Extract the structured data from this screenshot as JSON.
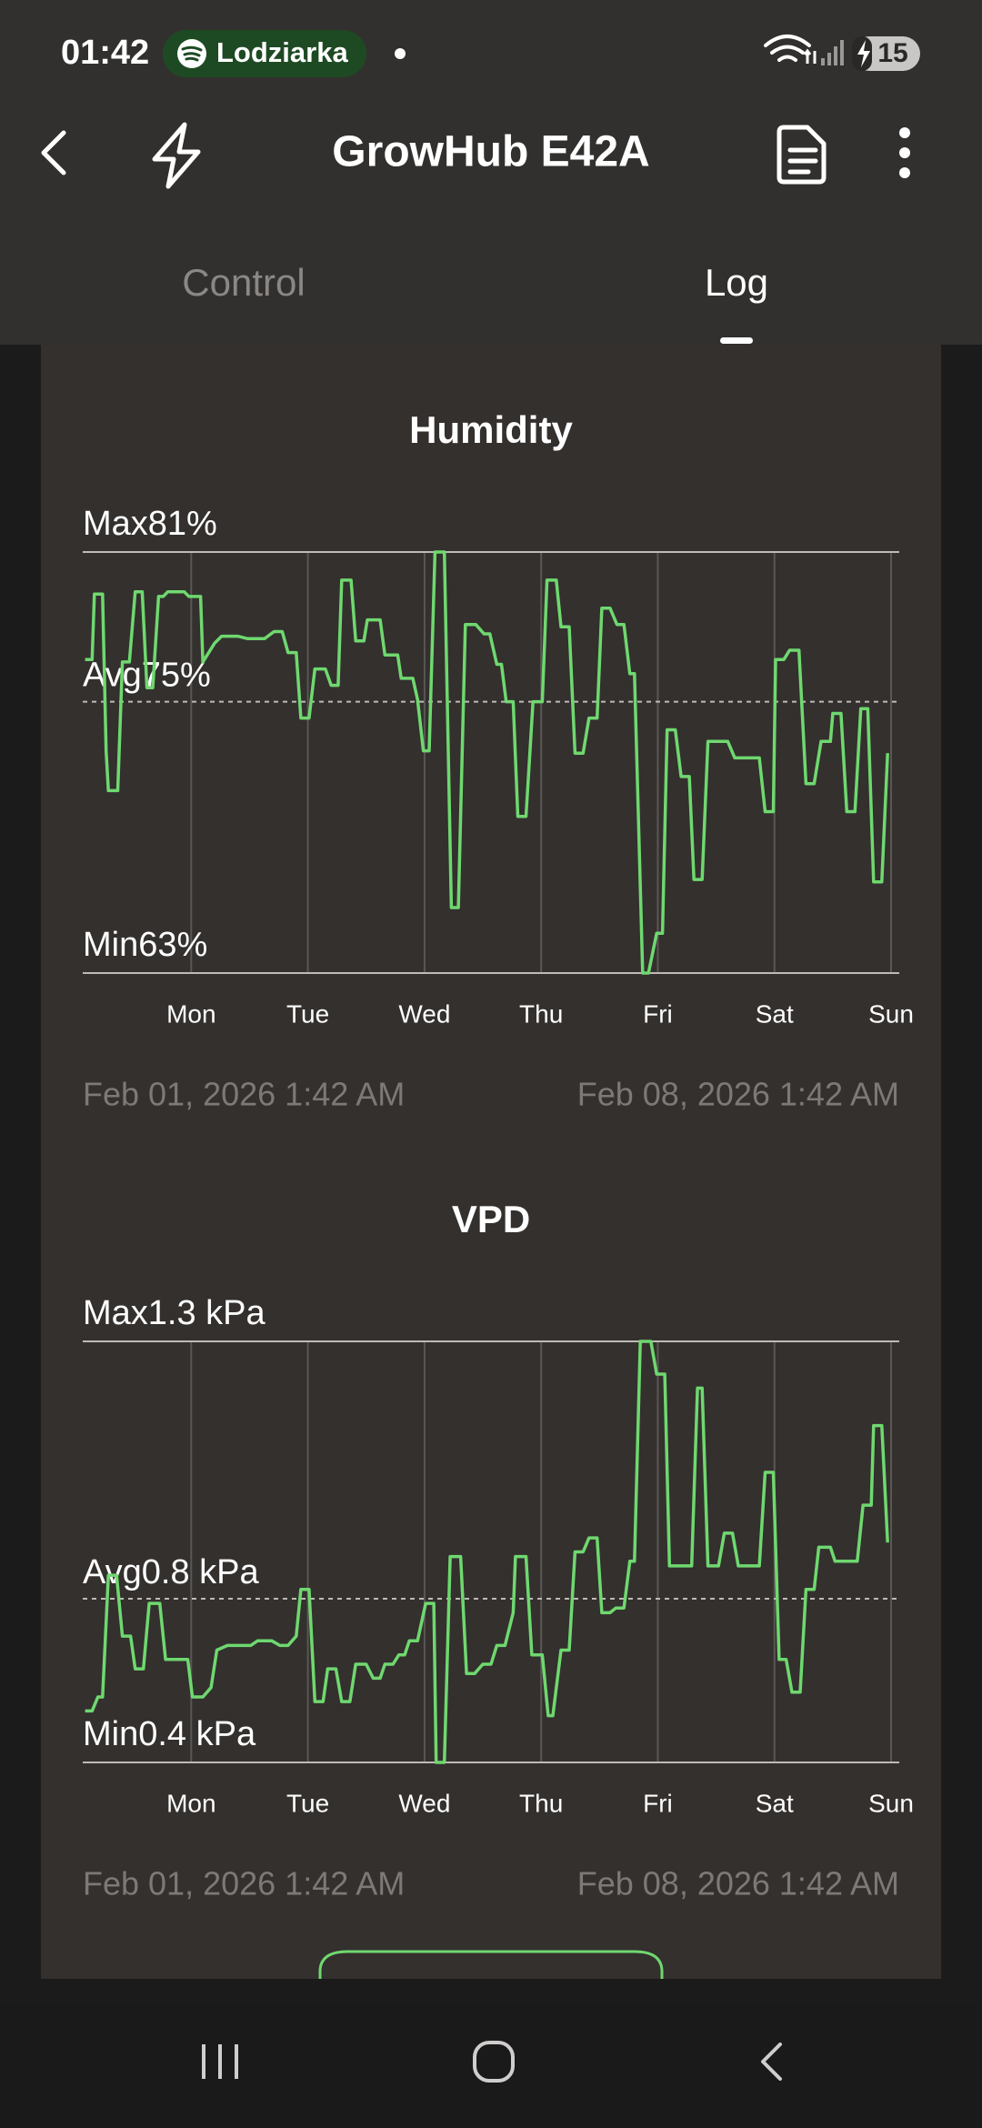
{
  "status_bar": {
    "time": "01:42",
    "media": "Lodziarka",
    "battery": "15"
  },
  "header": {
    "title": "GrowHub E42A"
  },
  "tabs": [
    "Control",
    "Log"
  ],
  "chart_data": [
    {
      "type": "line",
      "title": "Humidity",
      "color": "#6fd86f",
      "grid": true,
      "x": [
        0.02,
        0.08,
        0.1,
        0.17,
        0.2,
        0.22,
        0.3,
        0.34,
        0.4,
        0.45,
        0.51,
        0.55,
        0.6,
        0.65,
        0.69,
        0.73,
        0.87,
        0.91,
        1.01,
        1.03,
        1.13,
        1.19,
        1.33,
        1.41,
        1.56,
        1.64,
        1.71,
        1.76,
        1.83,
        1.87,
        1.94,
        1.99,
        2.08,
        2.13,
        2.19,
        2.22,
        2.3,
        2.34,
        2.41,
        2.44,
        2.55,
        2.59,
        2.7,
        2.73,
        2.83,
        2.87,
        2.92,
        2.97,
        3.02,
        3.1,
        3.16,
        3.22,
        3.28,
        3.37,
        3.44,
        3.49,
        3.55,
        3.59,
        3.63,
        3.69,
        3.73,
        3.8,
        3.86,
        3.94,
        3.98,
        4.06,
        4.1,
        4.17,
        4.22,
        4.29,
        4.34,
        4.41,
        4.45,
        4.52,
        4.58,
        4.64,
        4.69,
        4.73,
        4.8,
        4.85,
        4.92,
        4.97,
        5.01,
        5.08,
        5.13,
        5.2,
        5.24,
        5.31,
        5.36,
        5.53,
        5.59,
        5.8,
        5.85,
        5.92,
        5.94,
        6.01,
        6.06,
        6.14,
        6.2,
        6.27,
        6.33,
        6.41,
        6.43,
        6.5,
        6.55,
        6.62,
        6.67,
        6.73,
        6.78,
        6.85,
        6.9
      ],
      "values": [
        76.4,
        76.4,
        79.2,
        79.2,
        72.5,
        70.8,
        70.8,
        76.3,
        76.3,
        79.3,
        79.3,
        75.2,
        75.2,
        79.1,
        79.1,
        79.3,
        79.3,
        79.1,
        79.1,
        76.3,
        77.1,
        77.4,
        77.4,
        77.3,
        77.3,
        77.6,
        77.6,
        76.7,
        76.7,
        73.9,
        73.9,
        76.0,
        76.0,
        75.3,
        75.3,
        79.8,
        79.8,
        77.2,
        77.2,
        78.1,
        78.1,
        76.6,
        76.6,
        75.6,
        75.6,
        74.7,
        72.5,
        72.5,
        81,
        81,
        65.8,
        65.8,
        77.9,
        77.9,
        77.5,
        77.5,
        76.2,
        76.2,
        74.6,
        74.6,
        69.7,
        69.7,
        74.6,
        74.6,
        79.8,
        79.8,
        77.8,
        77.8,
        72.4,
        72.4,
        73.9,
        73.9,
        78.6,
        78.6,
        77.9,
        77.9,
        75.8,
        75.8,
        63,
        63,
        64.7,
        64.7,
        73.4,
        73.4,
        71.4,
        71.4,
        67.0,
        67.0,
        72.9,
        72.9,
        72.2,
        72.2,
        69.9,
        69.9,
        76.4,
        76.4,
        76.8,
        76.8,
        71.1,
        71.1,
        72.9,
        72.9,
        74.1,
        74.1,
        69.9,
        69.9,
        74.3,
        74.3,
        66.9,
        66.9,
        72.4
      ],
      "xlim": [
        0,
        7
      ],
      "xticks": [
        {
          "value": 0.93,
          "label": "Mon"
        },
        {
          "value": 1.93,
          "label": "Tue"
        },
        {
          "value": 2.93,
          "label": "Wed"
        },
        {
          "value": 3.93,
          "label": "Thu"
        },
        {
          "value": 4.93,
          "label": "Fri"
        },
        {
          "value": 5.93,
          "label": "Sat"
        },
        {
          "value": 6.93,
          "label": "Sun"
        }
      ],
      "ylim": [
        63,
        81
      ],
      "yticks": [
        {
          "value": 81,
          "label": "Max81%"
        },
        {
          "value": 63,
          "label": "Min63%"
        }
      ],
      "avg": {
        "value": 74.6,
        "label": "Avg75%"
      },
      "range_start": "Feb 01, 2026 1:42 AM",
      "range_end": "Feb 08, 2026 1:42 AM"
    },
    {
      "type": "line",
      "title": "VPD",
      "color": "#6fd86f",
      "grid": true,
      "x": [
        0.02,
        0.08,
        0.13,
        0.17,
        0.22,
        0.29,
        0.34,
        0.41,
        0.45,
        0.52,
        0.57,
        0.66,
        0.71,
        0.9,
        0.94,
        1.03,
        1.1,
        1.15,
        1.24,
        1.44,
        1.5,
        1.62,
        1.69,
        1.76,
        1.83,
        1.87,
        1.94,
        1.99,
        2.06,
        2.1,
        2.17,
        2.22,
        2.29,
        2.34,
        2.43,
        2.49,
        2.55,
        2.59,
        2.66,
        2.71,
        2.76,
        2.8,
        2.87,
        2.94,
        3.01,
        3.03,
        3.1,
        3.15,
        3.24,
        3.29,
        3.36,
        3.43,
        3.5,
        3.55,
        3.62,
        3.69,
        3.71,
        3.8,
        3.85,
        3.94,
        3.99,
        4.03,
        4.1,
        4.17,
        4.22,
        4.29,
        4.34,
        4.41,
        4.45,
        4.52,
        4.57,
        4.64,
        4.69,
        4.73,
        4.78,
        4.87,
        4.92,
        4.99,
        5.03,
        5.22,
        5.27,
        5.31,
        5.36,
        5.45,
        5.5,
        5.57,
        5.62,
        5.8,
        5.85,
        5.92,
        5.97,
        6.03,
        6.08,
        6.15,
        6.2,
        6.27,
        6.31,
        6.41,
        6.45,
        6.52,
        6.57,
        6.64,
        6.69,
        6.76,
        6.78,
        6.85,
        6.9
      ],
      "values": [
        0.51,
        0.51,
        0.54,
        0.54,
        0.8,
        0.8,
        0.67,
        0.67,
        0.6,
        0.6,
        0.74,
        0.74,
        0.62,
        0.62,
        0.54,
        0.54,
        0.56,
        0.64,
        0.65,
        0.65,
        0.66,
        0.66,
        0.65,
        0.65,
        0.67,
        0.77,
        0.77,
        0.53,
        0.53,
        0.6,
        0.6,
        0.53,
        0.53,
        0.61,
        0.61,
        0.58,
        0.58,
        0.61,
        0.61,
        0.63,
        0.63,
        0.66,
        0.66,
        0.74,
        0.74,
        0.4,
        0.4,
        0.84,
        0.84,
        0.59,
        0.59,
        0.61,
        0.61,
        0.65,
        0.65,
        0.72,
        0.84,
        0.84,
        0.63,
        0.63,
        0.5,
        0.5,
        0.64,
        0.64,
        0.85,
        0.85,
        0.88,
        0.88,
        0.72,
        0.72,
        0.73,
        0.73,
        0.83,
        0.83,
        1.3,
        1.3,
        1.23,
        1.23,
        0.82,
        0.82,
        1.2,
        1.2,
        0.82,
        0.82,
        0.89,
        0.89,
        0.82,
        0.82,
        1.02,
        1.02,
        0.62,
        0.62,
        0.55,
        0.55,
        0.77,
        0.77,
        0.86,
        0.86,
        0.83,
        0.83,
        0.83,
        0.83,
        0.95,
        0.95,
        1.12,
        1.12,
        0.87
      ],
      "xlim": [
        0,
        7
      ],
      "xticks": [
        {
          "value": 0.93,
          "label": "Mon"
        },
        {
          "value": 1.93,
          "label": "Tue"
        },
        {
          "value": 2.93,
          "label": "Wed"
        },
        {
          "value": 3.93,
          "label": "Thu"
        },
        {
          "value": 4.93,
          "label": "Fri"
        },
        {
          "value": 5.93,
          "label": "Sat"
        },
        {
          "value": 6.93,
          "label": "Sun"
        }
      ],
      "ylim": [
        0.4,
        1.3
      ],
      "yticks": [
        {
          "value": 1.3,
          "label": "Max1.3 kPa"
        },
        {
          "value": 0.4,
          "label": "Min0.4 kPa"
        }
      ],
      "avg": {
        "value": 0.75,
        "label": "Avg0.8 kPa"
      },
      "range_start": "Feb 01, 2026 1:42 AM",
      "range_end": "Feb 08, 2026 1:42 AM"
    }
  ]
}
